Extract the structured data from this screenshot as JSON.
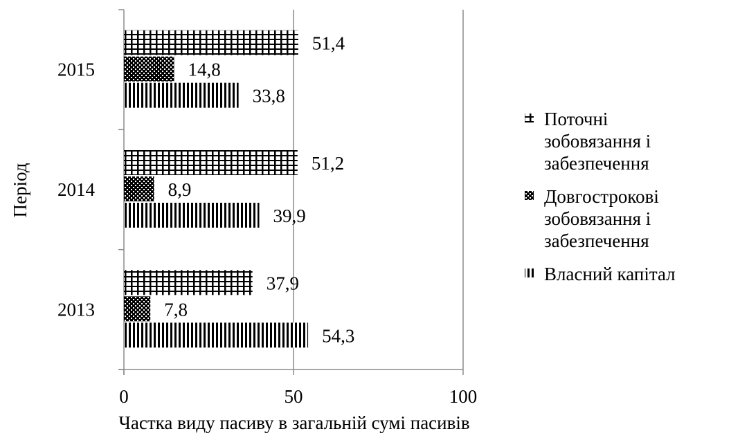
{
  "chart_data": {
    "type": "bar",
    "orientation": "horizontal",
    "title": "",
    "xlabel": "Частка виду пасиву в загальній сумі пасивів",
    "ylabel": "Період",
    "xlim": [
      0,
      100
    ],
    "xticks": [
      "0",
      "50",
      "100"
    ],
    "categories": [
      "2013",
      "2014",
      "2015"
    ],
    "series": [
      {
        "name": "Поточні зобовязання і забезпечення",
        "pattern": "grid",
        "values": [
          37.9,
          51.2,
          51.4
        ],
        "labels": [
          "37,9",
          "51,2",
          "51,4"
        ]
      },
      {
        "name": "Довгострокові зобовязання і забезпечення",
        "pattern": "dots",
        "values": [
          7.8,
          8.9,
          14.8
        ],
        "labels": [
          "7,8",
          "8,9",
          "14,8"
        ]
      },
      {
        "name": "Власний капітал",
        "pattern": "vertical",
        "values": [
          54.3,
          39.9,
          33.8
        ],
        "labels": [
          "54,3",
          "39,9",
          "33,8"
        ]
      }
    ],
    "legend": {
      "position": "right",
      "items": [
        {
          "lines": [
            "Поточні",
            "зобовязання і",
            "забезпечення"
          ]
        },
        {
          "lines": [
            "Довгострокові",
            "зобовязання і",
            "забезпечення"
          ]
        },
        {
          "lines": [
            "Власний капітал"
          ]
        }
      ]
    },
    "grid": "vertical-major",
    "colors": {
      "ink": "#000000",
      "grid": "#8c8c8c"
    }
  }
}
